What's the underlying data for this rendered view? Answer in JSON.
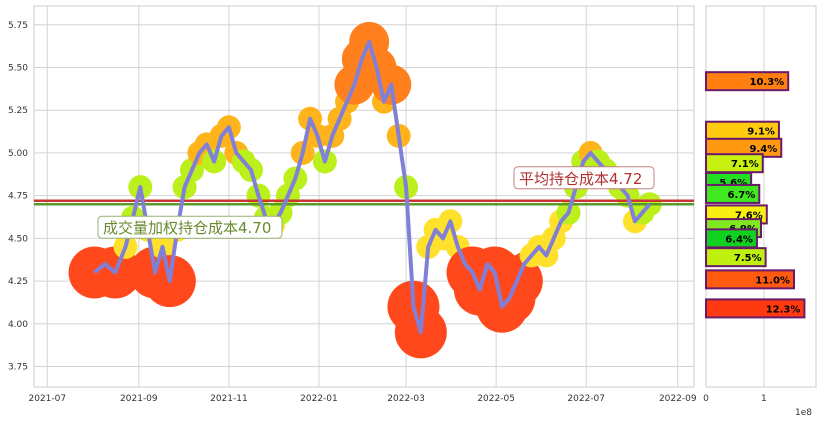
{
  "chart_data": [
    {
      "type": "line",
      "xlim": [
        "2021-06-22",
        "2022-09-12"
      ],
      "ylim": [
        3.63,
        5.86
      ],
      "x_ticks": [
        "2021-07",
        "2021-09",
        "2021-11",
        "2022-01",
        "2022-03",
        "2022-05",
        "2022-07",
        "2022-09"
      ],
      "x_tick_dates": [
        "2021-07-01",
        "2021-09-01",
        "2021-11-01",
        "2022-01-01",
        "2022-03-01",
        "2022-05-01",
        "2022-07-01",
        "2022-09-01"
      ],
      "y_ticks": [
        3.75,
        4.0,
        4.25,
        4.5,
        4.75,
        5.0,
        5.25,
        5.5,
        5.75
      ],
      "grid": true,
      "series": [
        {
          "color": "#8080d8",
          "x": [
            "2021-08-02",
            "2021-08-09",
            "2021-08-16",
            "2021-08-23",
            "2021-08-28",
            "2021-09-02",
            "2021-09-07",
            "2021-09-12",
            "2021-09-17",
            "2021-09-22",
            "2021-09-27",
            "2021-10-02",
            "2021-10-07",
            "2021-10-12",
            "2021-10-17",
            "2021-10-22",
            "2021-10-27",
            "2021-11-01",
            "2021-11-06",
            "2021-11-11",
            "2021-11-16",
            "2021-11-21",
            "2021-11-26",
            "2021-12-01",
            "2021-12-06",
            "2021-12-11",
            "2021-12-16",
            "2021-12-21",
            "2021-12-26",
            "2021-12-31",
            "2022-01-05",
            "2022-01-10",
            "2022-01-15",
            "2022-01-20",
            "2022-01-25",
            "2022-01-30",
            "2022-02-04",
            "2022-02-09",
            "2022-02-14",
            "2022-02-19",
            "2022-02-24",
            "2022-03-01",
            "2022-03-06",
            "2022-03-11",
            "2022-03-16",
            "2022-03-21",
            "2022-03-26",
            "2022-03-31",
            "2022-04-05",
            "2022-04-10",
            "2022-04-15",
            "2022-04-20",
            "2022-04-25",
            "2022-04-30",
            "2022-05-05",
            "2022-05-10",
            "2022-05-15",
            "2022-05-20",
            "2022-05-25",
            "2022-05-30",
            "2022-06-04",
            "2022-06-09",
            "2022-06-14",
            "2022-06-19",
            "2022-06-24",
            "2022-06-29",
            "2022-07-04",
            "2022-07-09",
            "2022-07-14",
            "2022-07-19",
            "2022-07-24",
            "2022-07-29",
            "2022-08-03",
            "2022-08-08",
            "2022-08-13"
          ],
          "y": [
            4.3,
            4.35,
            4.3,
            4.45,
            4.62,
            4.8,
            4.55,
            4.3,
            4.45,
            4.25,
            4.55,
            4.8,
            4.9,
            5.0,
            5.05,
            4.95,
            5.1,
            5.15,
            5.0,
            4.95,
            4.9,
            4.75,
            4.62,
            4.58,
            4.65,
            4.75,
            4.85,
            5.0,
            5.2,
            5.1,
            4.95,
            5.1,
            5.2,
            5.3,
            5.4,
            5.55,
            5.65,
            5.5,
            5.3,
            5.4,
            5.1,
            4.8,
            4.1,
            3.95,
            4.45,
            4.55,
            4.5,
            4.6,
            4.45,
            4.35,
            4.3,
            4.2,
            4.35,
            4.3,
            4.1,
            4.15,
            4.25,
            4.35,
            4.4,
            4.45,
            4.4,
            4.5,
            4.6,
            4.65,
            4.8,
            4.95,
            5.0,
            4.95,
            4.9,
            4.85,
            4.8,
            4.75,
            4.6,
            4.65,
            4.7
          ]
        }
      ],
      "hlines": [
        {
          "y": 4.72,
          "color": "#cc3333",
          "label": "平均持仓成本4.72"
        },
        {
          "y": 4.7,
          "color": "#5a9a2a",
          "label": "成交量加权持仓成本4.70"
        }
      ]
    },
    {
      "type": "bar",
      "orientation": "horizontal",
      "x_ticks": [
        "0",
        "1"
      ],
      "offset_label": "1e8",
      "xlim": [
        0,
        1.9
      ],
      "bars": [
        {
          "price": 5.42,
          "value": 1.42,
          "label": "10.3%",
          "color": "#ff7f10"
        },
        {
          "price": 5.13,
          "value": 1.26,
          "label": "9.1%",
          "color": "#ffcc10"
        },
        {
          "price": 5.03,
          "value": 1.3,
          "label": "9.4%",
          "color": "#ff9a10"
        },
        {
          "price": 4.94,
          "value": 0.98,
          "label": "7.1%",
          "color": "#c8f010"
        },
        {
          "price": 4.83,
          "value": 0.78,
          "label": "5.6%",
          "color": "#20e020"
        },
        {
          "price": 4.76,
          "value": 0.92,
          "label": "6.7%",
          "color": "#40e820"
        },
        {
          "price": 4.64,
          "value": 1.05,
          "label": "7.6%",
          "color": "#f8f010"
        },
        {
          "price": 4.56,
          "value": 0.95,
          "label": "6.9%",
          "color": "#80e820"
        },
        {
          "price": 4.5,
          "value": 0.88,
          "label": "6.4%",
          "color": "#10d020"
        },
        {
          "price": 4.39,
          "value": 1.03,
          "label": "7.5%",
          "color": "#c0f010"
        },
        {
          "price": 4.26,
          "value": 1.52,
          "label": "11.0%",
          "color": "#ff5a10"
        },
        {
          "price": 4.09,
          "value": 1.7,
          "label": "12.3%",
          "color": "#ff3a10"
        }
      ]
    }
  ]
}
